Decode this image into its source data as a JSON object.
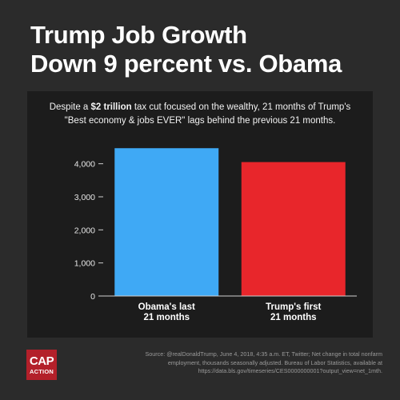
{
  "headline": {
    "line1": "Trump Job Growth",
    "line2": "Down 9 percent vs. Obama"
  },
  "subtitle": {
    "pre": "Despite a ",
    "bold": "$2 trillion",
    "mid": " tax cut focused on the wealthy, 21 months of Trump's",
    "line2": "\"Best economy & jobs EVER\" lags behind the previous 21 months."
  },
  "chart_data": {
    "type": "bar",
    "categories": [
      "Obama's last\n21 months",
      "Trump's first\n21 months"
    ],
    "values": [
      4470,
      4050
    ],
    "colors": [
      "#3fa9f5",
      "#e8262b"
    ],
    "ylim": [
      0,
      4500
    ],
    "yticks": [
      0,
      1000,
      2000,
      3000,
      4000
    ],
    "ytick_labels": [
      "0",
      "1,000",
      "2,000",
      "3,000",
      "4,000"
    ],
    "title": "",
    "xlabel": "",
    "ylabel": "",
    "grid": false
  },
  "footer": {
    "source_line1": "Source: @realDonaldTrump, June 4, 2018, 4:35 a.m. ET, Twitter; Net change in total nonfarm",
    "source_line2": "employment, thousands seasonally adjusted. Bureau of Labor Statistics, available at",
    "source_line3": "https://data.bls.gov/timeseries/CES0000000001?output_view=net_1mth.",
    "logo_top": "CAP",
    "logo_bottom": "ACTION",
    "logo_color": "#b3202a"
  }
}
